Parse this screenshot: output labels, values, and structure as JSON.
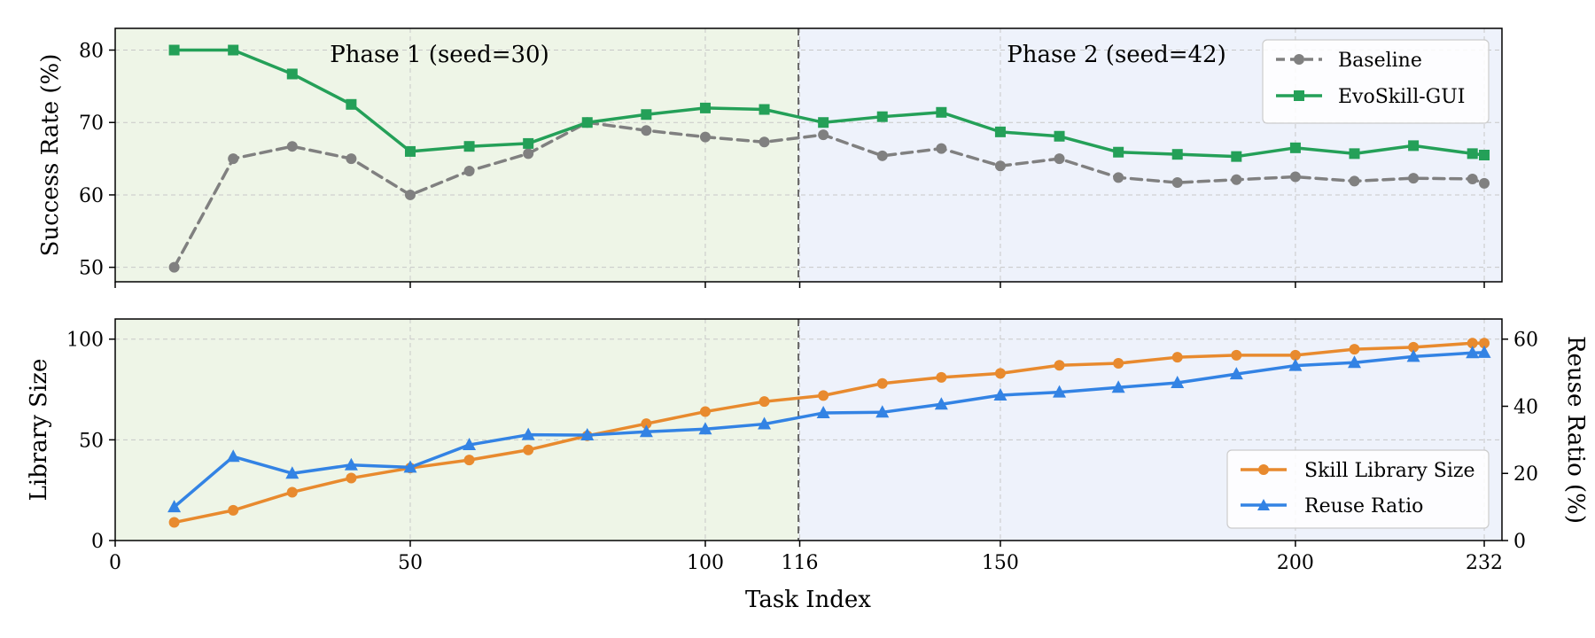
{
  "chart_data": [
    {
      "type": "line",
      "panel": "top",
      "ylabel": "Success Rate (%)",
      "ylim": [
        48,
        83
      ],
      "yticks": [
        50,
        60,
        70,
        80
      ],
      "xlim": [
        0,
        235
      ],
      "grid": true,
      "legend_position": "top-right",
      "phases": [
        {
          "label": "Phase 1 (seed=30)",
          "x_start": 0,
          "x_end": 116,
          "color": "#eef5e7"
        },
        {
          "label": "Phase 2 (seed=42)",
          "x_start": 116,
          "x_end": 235,
          "color": "#eef2fb"
        }
      ],
      "phase_divider_x": 116,
      "x": [
        10,
        20,
        30,
        40,
        50,
        60,
        70,
        80,
        90,
        100,
        110,
        120,
        130,
        140,
        150,
        160,
        170,
        180,
        190,
        200,
        210,
        220,
        230,
        232
      ],
      "series": [
        {
          "name": "Baseline",
          "color": "#808080",
          "style": "dashed",
          "marker": "circle",
          "values": [
            50,
            65,
            66.7,
            65,
            60,
            63.3,
            65.7,
            70,
            68.9,
            68,
            67.3,
            68.3,
            65.4,
            66.4,
            64,
            65,
            62.4,
            61.7,
            62.1,
            62.5,
            61.9,
            62.3,
            62.2,
            61.6
          ]
        },
        {
          "name": "EvoSkill-GUI",
          "color": "#24a058",
          "style": "solid",
          "marker": "square",
          "values": [
            80,
            80,
            76.7,
            72.5,
            66,
            66.7,
            67.1,
            70,
            71.1,
            72,
            71.8,
            70,
            70.8,
            71.4,
            68.7,
            68.1,
            65.9,
            65.6,
            65.3,
            66.5,
            65.7,
            66.8,
            65.7,
            65.5
          ]
        }
      ]
    },
    {
      "type": "line",
      "panel": "bottom",
      "xlabel": "Task Index",
      "ylabel": "Library Size",
      "ylabel_right": "Reuse Ratio (%)",
      "ylim": [
        0,
        110
      ],
      "yticks": [
        0,
        50,
        100
      ],
      "ylim_right": [
        0,
        66
      ],
      "yticks_right": [
        0,
        20,
        40,
        60
      ],
      "xlim": [
        0,
        235
      ],
      "xticks": [
        0,
        50,
        100,
        116,
        150,
        200,
        232
      ],
      "grid": true,
      "legend_position": "bottom-right",
      "phases": [
        {
          "x_start": 0,
          "x_end": 116,
          "color": "#eef5e7"
        },
        {
          "x_start": 116,
          "x_end": 235,
          "color": "#eef2fb"
        }
      ],
      "phase_divider_x": 116,
      "x": [
        10,
        20,
        30,
        40,
        50,
        60,
        70,
        80,
        90,
        100,
        110,
        120,
        130,
        140,
        150,
        160,
        170,
        180,
        190,
        200,
        210,
        220,
        230,
        232
      ],
      "series": [
        {
          "name": "Skill Library Size",
          "axis": "left",
          "color": "#e88a2e",
          "marker": "circle",
          "values": [
            9,
            15,
            24,
            31,
            36,
            40,
            45,
            52,
            58,
            64,
            69,
            72,
            78,
            81,
            83,
            87,
            88,
            91,
            92,
            92,
            95,
            96,
            98,
            98
          ]
        },
        {
          "name": "Reuse Ratio",
          "axis": "right",
          "color": "#3383e4",
          "marker": "triangle",
          "values": [
            10,
            25,
            20,
            22.5,
            21.8,
            28.5,
            31.5,
            31.4,
            32.4,
            33.2,
            34.7,
            38,
            38.2,
            40.6,
            43.3,
            44.2,
            45.6,
            47,
            49.6,
            52.1,
            53,
            54.8,
            55.9,
            56
          ]
        }
      ]
    }
  ]
}
